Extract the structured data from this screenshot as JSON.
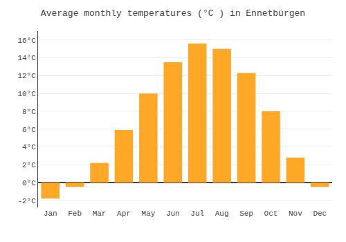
{
  "chart_data": {
    "type": "bar",
    "title": "Average monthly temperatures (°C ) in Ennetbürgen",
    "categories": [
      "Jan",
      "Feb",
      "Mar",
      "Apr",
      "May",
      "Jun",
      "Jul",
      "Aug",
      "Sep",
      "Oct",
      "Nov",
      "Dec"
    ],
    "values": [
      -1.8,
      -0.5,
      2.2,
      5.9,
      10.0,
      13.5,
      15.6,
      15.0,
      12.3,
      8.0,
      2.8,
      -0.5
    ],
    "color": "#FFA726",
    "ylim": [
      -2.8,
      17.0
    ],
    "yticks": [
      {
        "value": -2,
        "label": "-2°C"
      },
      {
        "value": 0,
        "label": "0°C"
      },
      {
        "value": 2,
        "label": "2°C"
      },
      {
        "value": 4,
        "label": "4°C"
      },
      {
        "value": 6,
        "label": "6°C"
      },
      {
        "value": 8,
        "label": "8°C"
      },
      {
        "value": 10,
        "label": "10°C"
      },
      {
        "value": 12,
        "label": "12°C"
      },
      {
        "value": 14,
        "label": "14°C"
      },
      {
        "value": 16,
        "label": "16°C"
      }
    ],
    "grid": true
  }
}
